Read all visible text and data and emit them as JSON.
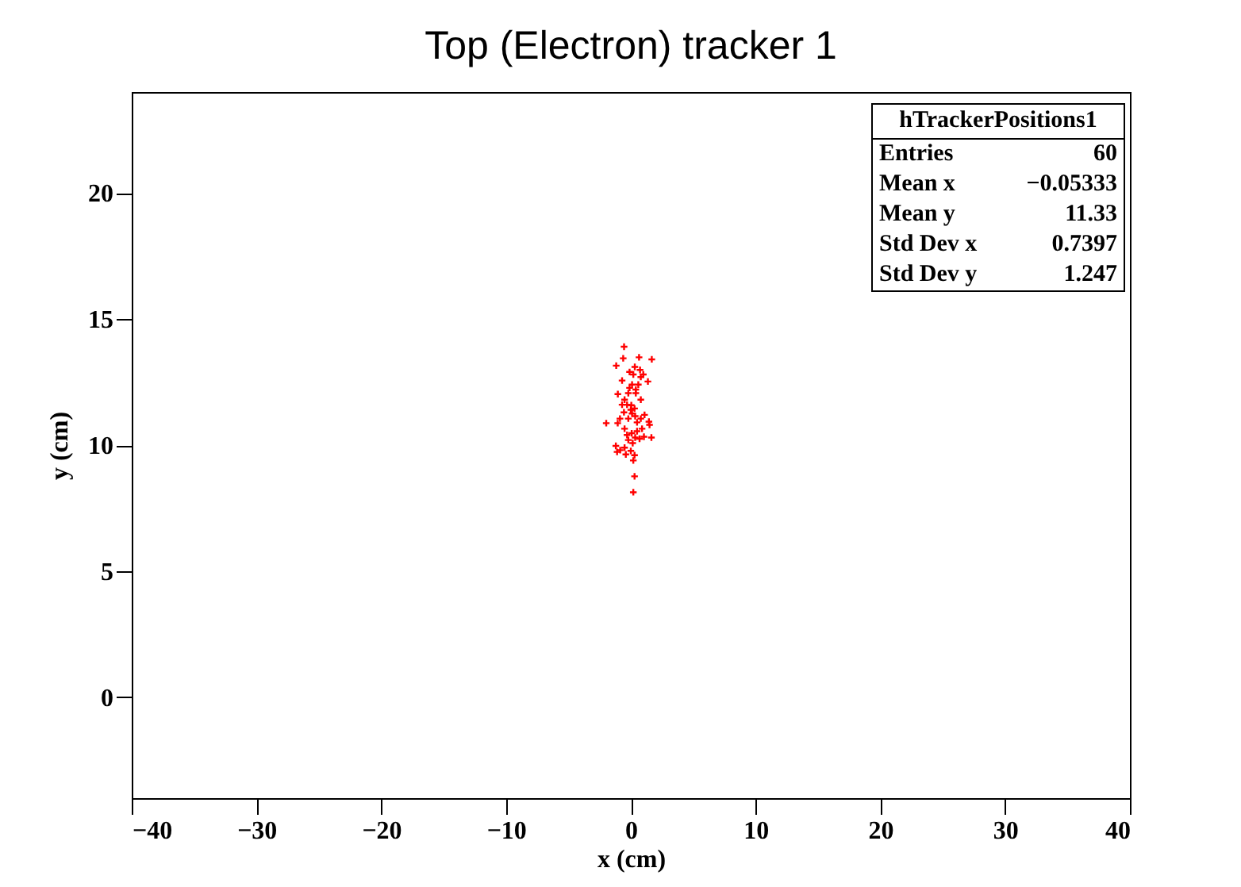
{
  "chart_data": {
    "type": "scatter",
    "title": "Top (Electron) tracker 1",
    "xlabel": "x (cm)",
    "ylabel": "y (cm)",
    "annotations": [
      "hTrackerPositions1",
      "Entries 60",
      "Mean x −0.05333",
      "Mean y 11.33",
      "Std Dev x 0.7397",
      "Std Dev y 1.247"
    ],
    "xlim": [
      -40,
      40
    ],
    "xticks": [
      -40,
      -30,
      -20,
      -10,
      0,
      10,
      20,
      30,
      40
    ],
    "ylim": [
      -4,
      24
    ],
    "yticks": [
      0,
      5,
      10,
      15,
      20
    ],
    "grid": false,
    "legend": false,
    "marker": "cross",
    "series": [
      {
        "color": "#ff0000",
        "x": [
          -0.54,
          0.66,
          -0.61,
          1.68,
          -1.17,
          0.32,
          0.74,
          0.2,
          0.8,
          -0.7,
          1.37,
          0.6,
          -0.1,
          -1.04,
          0.4,
          -0.5,
          0.8,
          0.04,
          0.0,
          0.3,
          -0.55,
          0.1,
          1.1,
          -0.87,
          -0.2,
          -1.97,
          -1.05,
          0.5,
          1.45,
          0.9,
          -0.5,
          0.07,
          1.5,
          0.35,
          0.7,
          1.05,
          1.65,
          -0.2,
          0.15,
          -1.2,
          -0.5,
          -1.1,
          0.0,
          0.3,
          -0.4,
          0.2,
          0.3,
          0.2,
          -0.2,
          0.1,
          -0.3,
          0.35,
          0.8,
          -0.7,
          0.5,
          -0.3,
          0.4,
          -0.1,
          -0.85,
          1.0
        ],
        "values": [
          13.9,
          13.48,
          13.44,
          13.4,
          13.15,
          13.1,
          12.98,
          12.8,
          12.7,
          12.56,
          12.52,
          12.4,
          12.27,
          12.02,
          12.06,
          11.8,
          11.8,
          11.58,
          11.4,
          11.45,
          11.3,
          11.25,
          11.2,
          11.05,
          11.05,
          10.87,
          10.87,
          10.9,
          10.93,
          10.65,
          10.65,
          10.47,
          10.8,
          10.3,
          10.25,
          10.33,
          10.3,
          10.2,
          10.08,
          9.97,
          9.9,
          9.73,
          9.77,
          9.6,
          9.63,
          9.39,
          8.76,
          8.13,
          12.06,
          12.4,
          11.6,
          11.15,
          11.05,
          11.6,
          10.55,
          10.4,
          12.2,
          12.9,
          9.8,
          12.8
        ]
      }
    ]
  }
}
